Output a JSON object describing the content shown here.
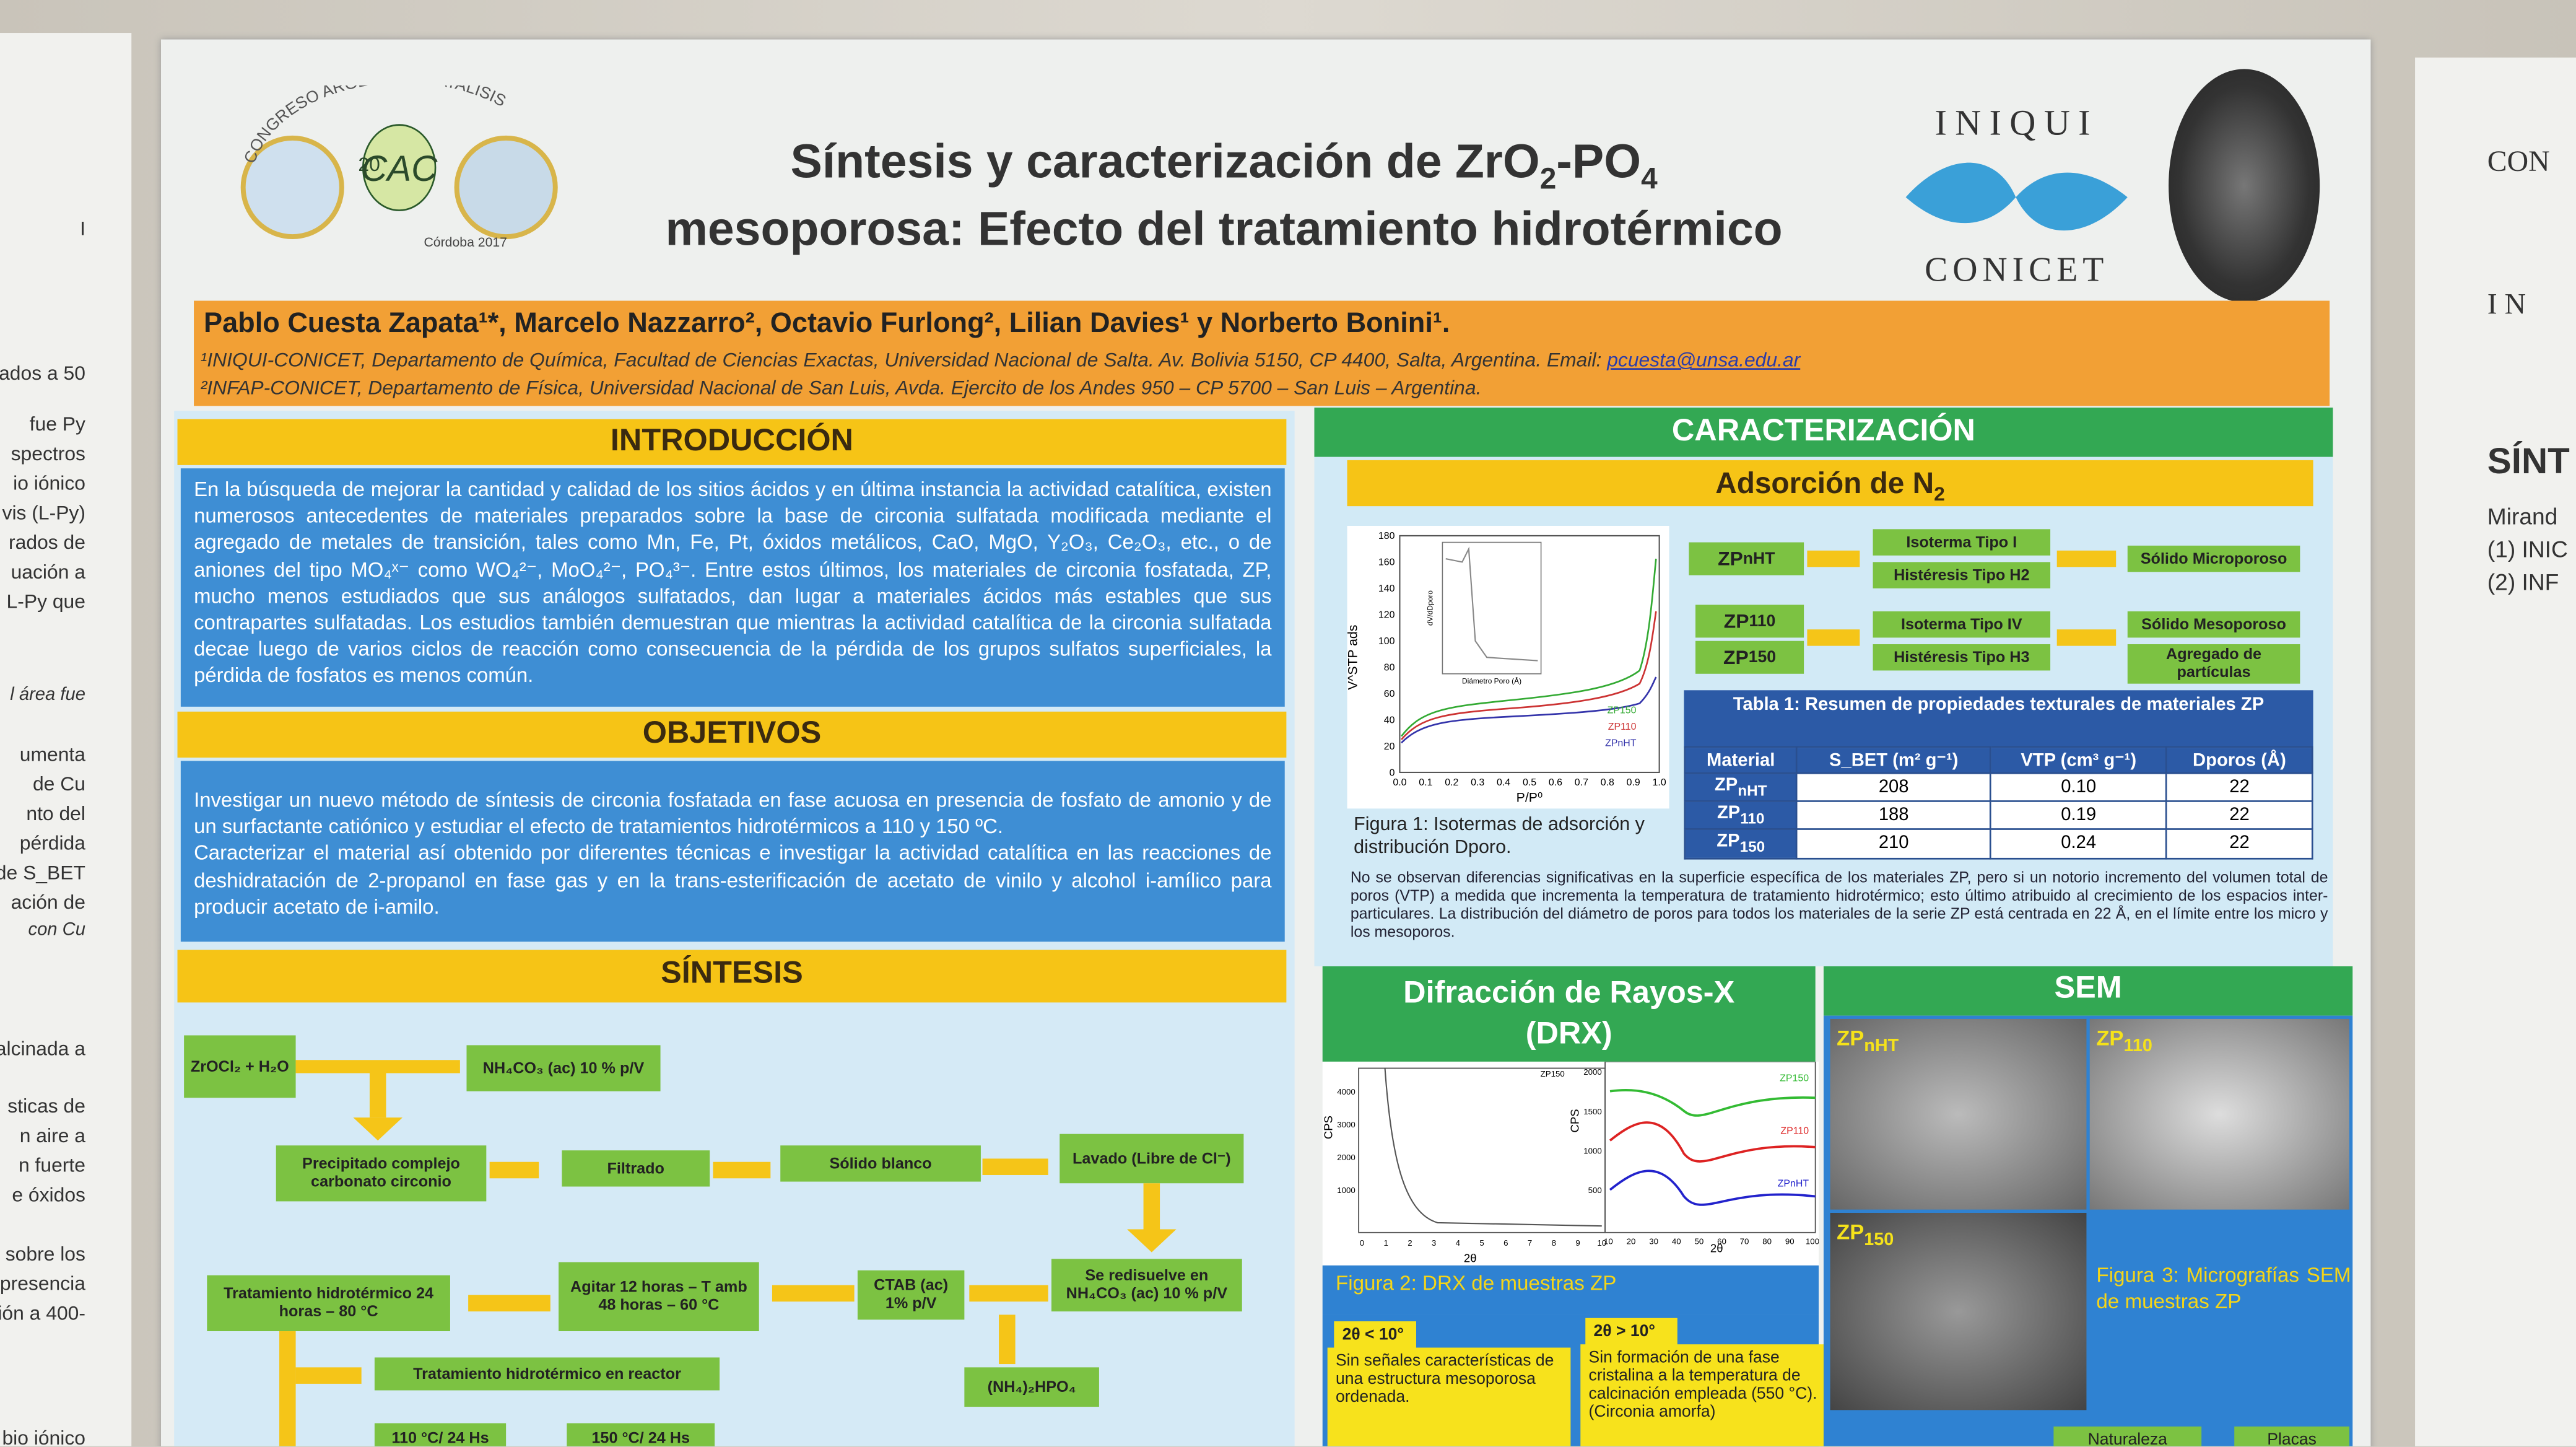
{
  "header": {
    "logo_left": {
      "arc_text": "CONGRESO ARGENTINO CATALISIS",
      "center": "CAC",
      "year": "20",
      "place": "Córdoba 2017"
    },
    "title_line1": [
      "Síntesis y caracterización de ZrO",
      "2",
      "-PO",
      "4"
    ],
    "title_line2": "mesoporosa: Efecto del tratamiento hidrotérmico",
    "logo_right": {
      "top": "INIQUI",
      "bottom": "CONICET"
    }
  },
  "authors": "Pablo Cuesta Zapata¹*, Marcelo Nazzarro², Octavio Furlong², Lilian Davies¹ y Norberto Bonini¹.",
  "affiliations": [
    "¹INIQUI-CONICET, Departamento de Química, Facultad de Ciencias Exactas, Universidad Nacional de Salta. Av. Bolivia 5150, CP 4400, Salta, Argentina. Email: ",
    "²INFAP-CONICET, Departamento de Física, Universidad Nacional de San Luis, Avda. Ejercito de los Andes 950 – CP 5700 – San Luis – Argentina."
  ],
  "email": "pcuesta@unsa.edu.ar",
  "introduccion": {
    "heading": "INTRODUCCIÓN",
    "text": "En la búsqueda de mejorar la cantidad y calidad de los sitios ácidos y en última instancia la actividad catalítica, existen numerosos antecedentes de materiales preparados sobre la base de circonia sulfatada modificada mediante el agregado de metales de transición, tales como Mn, Fe, Pt, óxidos metálicos, CaO, MgO, Y₂O₃, Ce₂O₃, etc., o de aniones del tipo MO₄ˣ⁻ como WO₄²⁻, MoO₄²⁻, PO₄³⁻. Entre estos últimos, los materiales de circonia fosfatada, ZP, mucho menos estudiados que sus análogos sulfatados, dan lugar a materiales ácidos más estables que sus contrapartes sulfatadas. Los estudios también demuestran que mientras la actividad catalítica de la circonia sulfatada decae luego de varios ciclos de reacción como consecuencia de la pérdida de los grupos sulfatos superficiales, la pérdida de fosfatos es menos común."
  },
  "objetivos": {
    "heading": "OBJETIVOS",
    "paragraphs": [
      "Investigar un nuevo método de síntesis de circonia fosfatada en fase acuosa en presencia de fosfato de amonio y de un surfactante catiónico y estudiar el efecto de tratamientos hidrotérmicos a 110 y 150 ºC.",
      "Caracterizar el material así obtenido por diferentes técnicas e investigar la actividad catalítica en las reacciones de deshidratación de 2-propanol en fase gas y en la trans-esterificación de acetato de vinilo y alcohol i-amílico para producir acetato de i-amilo."
    ]
  },
  "sintesis": {
    "heading": "SÍNTESIS",
    "boxes": [
      "ZrOCl₂ + H₂O",
      "NH₄CO₃ (ac) 10 % p/V",
      "Precipitado complejo carbonato circonio",
      "Filtrado",
      "Sólido blanco",
      "Lavado (Libre de Cl⁻)",
      "Se redisuelve en NH₄CO₃ (ac) 10 % p/V",
      "CTAB (ac) 1% p/V",
      "Agitar 12 horas – T amb 48 horas – 60 °C",
      "Tratamiento hidrotérmico 24 horas – 80 °C",
      "Tratamiento hidrotérmico en reactor",
      "(NH₄)₂HPO₄",
      "110 °C/ 24 Hs",
      "150 °C/ 24 Hs"
    ]
  },
  "caracterizacion": {
    "heading": "CARACTERIZACIÓN",
    "subheading": [
      "Adsorción de N",
      "2"
    ],
    "samples": [
      {
        "text": "ZP",
        "sub": "nHT"
      },
      {
        "text": "ZP",
        "sub": "110"
      },
      {
        "text": "ZP",
        "sub": "150"
      }
    ],
    "flow": [
      "Isoterma Tipo I",
      "Histéresis Tipo H2",
      "Sólido Microporoso",
      "Isoterma Tipo IV",
      "Histéresis Tipo H3",
      "Sólido Mesoporoso",
      "Agregado de partículas"
    ],
    "figure1": {
      "ylabel": "V^STP ads",
      "xlabel": "P/P⁰",
      "yticks": [
        "0",
        "20",
        "40",
        "60",
        "80",
        "100",
        "120",
        "140",
        "160",
        "180"
      ],
      "xticks": [
        "0.0",
        "0.1",
        "0.2",
        "0.3",
        "0.4",
        "0.5",
        "0.6",
        "0.7",
        "0.8",
        "0.9",
        "1.0"
      ],
      "inset_xlabel": "Diámetro Poro (Å)",
      "inset_ylabel": "dV/dDporo",
      "legend": [
        "ZP150",
        "ZP110",
        "ZPnHT"
      ],
      "caption": "Figura 1: Isotermas de adsorción y distribución Dporo."
    },
    "table": {
      "title": "Tabla 1: Resumen de propiedades texturales de materiales ZP",
      "headers": [
        "Material",
        "S_BET (m² g⁻¹)",
        "VTP (cm³ g⁻¹)",
        "Dporos (Å)"
      ],
      "rows": [
        [
          "208",
          "0.10",
          "22"
        ],
        [
          "188",
          "0.19",
          "22"
        ],
        [
          "210",
          "0.24",
          "22"
        ]
      ]
    },
    "paragraph": "No se observan diferencias significativas en la superficie específica de los materiales ZP, pero si un notorio incremento del volumen total de poros (VTP) a medida que incrementa la temperatura de tratamiento hidrotérmico; esto último atribuido al crecimiento de los espacios inter-particulares. La distribución del diámetro de poros para todos los materiales de la serie ZP está centrada en 22 Å, en el límite entre los micro y los mesoporos."
  },
  "drx": {
    "heading": "Difracción de Rayos-X (DRX)",
    "ylabel": "CPS",
    "xlabel": "2θ",
    "left_yticks": [
      "1000",
      "2000",
      "3000",
      "4000"
    ],
    "left_xticks": [
      "0",
      "1",
      "2",
      "3",
      "4",
      "5",
      "6",
      "7",
      "8",
      "9",
      "10"
    ],
    "right_yticks": [
      "500",
      "1000",
      "1500",
      "2000"
    ],
    "right_xticks": [
      "10",
      "20",
      "30",
      "40",
      "50",
      "60",
      "70",
      "80",
      "90",
      "100"
    ],
    "legend": [
      "ZP150",
      "ZP110",
      "ZPnHT"
    ],
    "caption": "Figura 2: DRX de muestras ZP",
    "notes": [
      {
        "title": "2θ < 10°",
        "text": "Sin señales características de una estructura mesoporosa ordenada."
      },
      {
        "title": "2θ > 10°",
        "text": "Sin formación de una fase cristalina a la temperatura de calcinación empleada (550 °C). (Circonia amorfa)"
      }
    ]
  },
  "sem": {
    "heading": "SEM",
    "caption": "Figura 3: Micrografías SEM de muestras ZP",
    "bottom": [
      "Naturaleza",
      "Placas"
    ]
  },
  "left_neighbor": [
    "I",
    "ados a 50",
    "fue Py",
    "spectros",
    "io iónico",
    "vis (L-Py)",
    "rados de",
    "uación a",
    "L-Py que",
    "l área fue",
    "umenta",
    "de Cu",
    "nto del",
    "pérdida",
    "a de S_BET",
    "ación de",
    "con Cu",
    "alcinada a",
    "sticas de",
    "n aire a",
    "n fuerte",
    "e óxidos",
    "sobre los",
    "presencia",
    "ión a 400-",
    "bio iónico"
  ],
  "right_neighbor": [
    "CON",
    "I N",
    "SÍNT",
    "Mirand",
    "(1) INIC",
    "(2) INF"
  ]
}
